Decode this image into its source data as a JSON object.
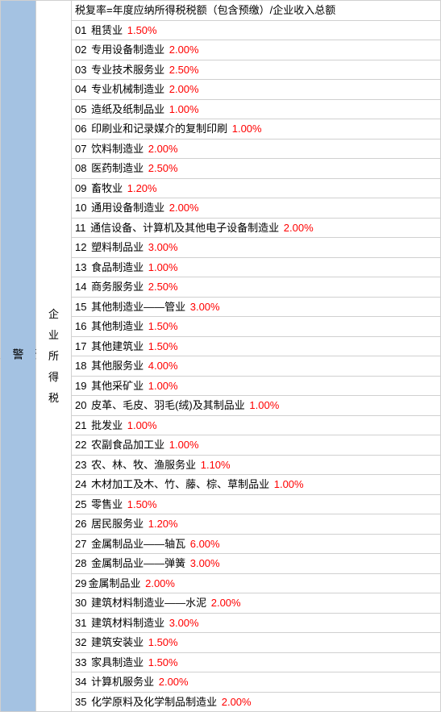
{
  "leftHeader": "行业预警负税率",
  "midHeader": "企业所得税",
  "formulaRow": "税复率=年度应纳所得税税额（包含预缴）/企业收入总额",
  "rows": [
    {
      "idx": "01",
      "label": "租赁业",
      "rate": "1.50%"
    },
    {
      "idx": "02",
      "label": "专用设备制造业",
      "rate": "2.00%"
    },
    {
      "idx": "03",
      "label": "专业技术服务业",
      "rate": "2.50%"
    },
    {
      "idx": "04",
      "label": "专业机械制造业",
      "rate": "2.00%"
    },
    {
      "idx": "05",
      "label": "造纸及纸制品业",
      "rate": "1.00%"
    },
    {
      "idx": "06",
      "label": "印刷业和记录媒介的复制印刷",
      "rate": "1.00%"
    },
    {
      "idx": "07",
      "label": "饮料制造业",
      "rate": "2.00%"
    },
    {
      "idx": "08",
      "label": "医药制造业",
      "rate": "2.50%"
    },
    {
      "idx": "09",
      "label": "畜牧业",
      "rate": "1.20%"
    },
    {
      "idx": "10",
      "label": "通用设备制造业",
      "rate": "2.00%"
    },
    {
      "idx": "11",
      "label": "通信设备、计算机及其他电子设备制造业",
      "rate": "2.00%"
    },
    {
      "idx": "12",
      "label": "塑料制品业",
      "rate": "3.00%"
    },
    {
      "idx": "13",
      "label": "食品制造业",
      "rate": "1.00%"
    },
    {
      "idx": "14",
      "label": "商务服务业",
      "rate": "2.50%"
    },
    {
      "idx": "15",
      "label": "其他制造业——管业",
      "rate": "3.00%"
    },
    {
      "idx": "16",
      "label": "其他制造业",
      "rate": "1.50%"
    },
    {
      "idx": "17",
      "label": "其他建筑业",
      "rate": "1.50%"
    },
    {
      "idx": "18",
      "label": "其他服务业",
      "rate": "4.00%"
    },
    {
      "idx": "19",
      "label": "其他采矿业",
      "rate": "1.00%"
    },
    {
      "idx": "20",
      "label": "皮革、毛皮、羽毛(绒)及其制品业",
      "rate": "1.00%"
    },
    {
      "idx": "21",
      "label": "批发业",
      "rate": "1.00%"
    },
    {
      "idx": "22",
      "label": "农副食品加工业",
      "rate": "1.00%"
    },
    {
      "idx": "23",
      "label": "农、林、牧、渔服务业",
      "rate": "1.10%"
    },
    {
      "idx": "24",
      "label": "木材加工及木、竹、藤、棕、草制品业",
      "rate": "1.00%"
    },
    {
      "idx": "25",
      "label": "零售业",
      "rate": "1.50%"
    },
    {
      "idx": "26",
      "label": "居民服务业",
      "rate": "1.20%"
    },
    {
      "idx": "27",
      "label": "金属制品业——轴瓦",
      "rate": "6.00%"
    },
    {
      "idx": "28",
      "label": "金属制品业——弹簧",
      "rate": "3.00%"
    },
    {
      "idx": "29",
      "label": "金属制品业",
      "rate": "2.00%"
    },
    {
      "idx": "30",
      "label": "建筑材料制造业——水泥",
      "rate": "2.00%"
    },
    {
      "idx": "31",
      "label": "建筑材料制造业",
      "rate": "3.00%"
    },
    {
      "idx": "32",
      "label": "建筑安装业",
      "rate": "1.50%"
    },
    {
      "idx": "33",
      "label": "家具制造业",
      "rate": "1.50%"
    },
    {
      "idx": "34",
      "label": "计算机服务业",
      "rate": "2.00%"
    },
    {
      "idx": "35",
      "label": "化学原料及化学制品制造业",
      "rate": "2.00%"
    }
  ],
  "colors": {
    "leftBg": "#a4c2e2",
    "border": "#d0d0d0",
    "rate": "#ff0000",
    "text": "#000000"
  }
}
